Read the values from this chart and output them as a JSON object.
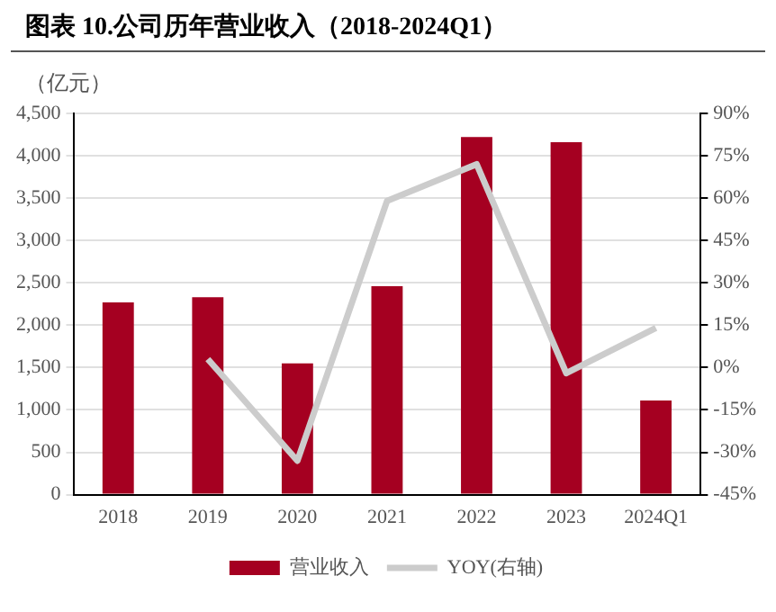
{
  "chart_data": {
    "type": "bar",
    "title": "图表 10.公司历年营业收入（2018-2024Q1）",
    "ylabel": "（亿元）",
    "categories": [
      "2018",
      "2019",
      "2020",
      "2021",
      "2022",
      "2023",
      "2024Q1"
    ],
    "series": [
      {
        "name": "营业收入",
        "color": "#a50021",
        "values": [
          2270,
          2330,
          1550,
          2460,
          4220,
          4160,
          1110
        ]
      },
      {
        "name": "YOY(右轴)",
        "type": "line",
        "axis": "y2",
        "color": "#cccccc",
        "values": [
          null,
          3,
          -33,
          59,
          72,
          -2,
          14
        ]
      }
    ],
    "ylim": [
      0,
      4500
    ],
    "yticks": [
      {
        "value": 0,
        "label": "0"
      },
      {
        "value": 500,
        "label": "500"
      },
      {
        "value": 1000,
        "label": "1,000"
      },
      {
        "value": 1500,
        "label": "1,500"
      },
      {
        "value": 2000,
        "label": "2,000"
      },
      {
        "value": 2500,
        "label": "2,500"
      },
      {
        "value": 3000,
        "label": "3,000"
      },
      {
        "value": 3500,
        "label": "3,500"
      },
      {
        "value": 4000,
        "label": "4,000"
      },
      {
        "value": 4500,
        "label": "4,500"
      }
    ],
    "y2lim": [
      -45,
      90
    ],
    "y2ticks": [
      {
        "value": -45,
        "label": "-45%"
      },
      {
        "value": -30,
        "label": "-30%"
      },
      {
        "value": -15,
        "label": "-15%"
      },
      {
        "value": 0,
        "label": "0%"
      },
      {
        "value": 15,
        "label": "15%"
      },
      {
        "value": 30,
        "label": "30%"
      },
      {
        "value": 45,
        "label": "45%"
      },
      {
        "value": 60,
        "label": "60%"
      },
      {
        "value": 75,
        "label": "75%"
      },
      {
        "value": 90,
        "label": "90%"
      }
    ],
    "grid": "y",
    "legend": "bottom",
    "marker": "none",
    "line_style": "solid"
  }
}
